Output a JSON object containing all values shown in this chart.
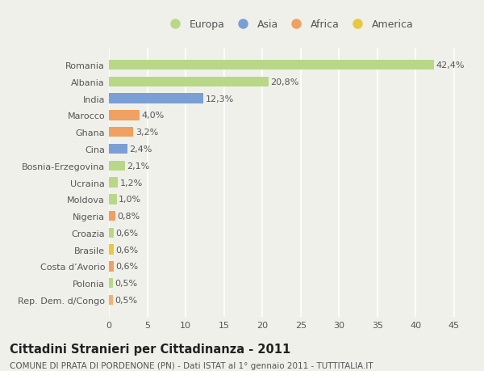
{
  "categories": [
    "Rep. Dem. d/Congo",
    "Polonia",
    "Costa d’Avorio",
    "Brasile",
    "Croazia",
    "Nigeria",
    "Moldova",
    "Ucraina",
    "Bosnia-Erzegovina",
    "Cina",
    "Ghana",
    "Marocco",
    "India",
    "Albania",
    "Romania"
  ],
  "values": [
    0.5,
    0.5,
    0.6,
    0.6,
    0.6,
    0.8,
    1.0,
    1.2,
    2.1,
    2.4,
    3.2,
    4.0,
    12.3,
    20.8,
    42.4
  ],
  "labels": [
    "0,5%",
    "0,5%",
    "0,6%",
    "0,6%",
    "0,6%",
    "0,8%",
    "1,0%",
    "1,2%",
    "2,1%",
    "2,4%",
    "3,2%",
    "4,0%",
    "12,3%",
    "20,8%",
    "42,4%"
  ],
  "colors": [
    "#f0b070",
    "#b8d888",
    "#f0a060",
    "#e8c840",
    "#b8d888",
    "#f0a060",
    "#b8d888",
    "#b8d888",
    "#b8d888",
    "#7a9fd4",
    "#f0a060",
    "#f0a060",
    "#7a9fd4",
    "#b8d888",
    "#b8d888"
  ],
  "legend_labels": [
    "Europa",
    "Asia",
    "Africa",
    "America"
  ],
  "legend_colors": [
    "#b8d888",
    "#7a9fd4",
    "#f0a060",
    "#e8c840"
  ],
  "xlim": [
    0,
    47
  ],
  "xticks": [
    0,
    5,
    10,
    15,
    20,
    25,
    30,
    35,
    40,
    45
  ],
  "title": "Cittadini Stranieri per Cittadinanza - 2011",
  "subtitle": "COMUNE DI PRATA DI PORDENONE (PN) - Dati ISTAT al 1° gennaio 2011 - TUTTITALIA.IT",
  "background_color": "#f0f0eb",
  "bar_height": 0.6,
  "grid_color": "#ffffff",
  "text_color": "#555555",
  "label_fontsize": 8,
  "tick_fontsize": 8,
  "title_fontsize": 10.5,
  "subtitle_fontsize": 7.5
}
